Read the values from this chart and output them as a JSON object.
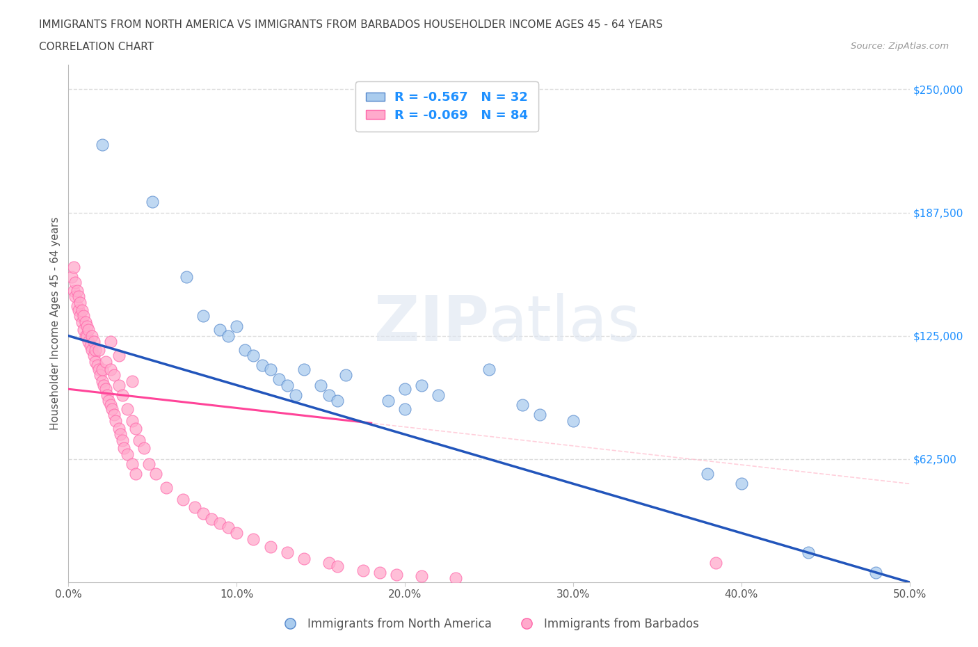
{
  "title_line1": "IMMIGRANTS FROM NORTH AMERICA VS IMMIGRANTS FROM BARBADOS HOUSEHOLDER INCOME AGES 45 - 64 YEARS",
  "title_line2": "CORRELATION CHART",
  "source": "Source: ZipAtlas.com",
  "ylabel": "Householder Income Ages 45 - 64 years",
  "watermark": "ZIPatlas",
  "legend_blue_R": "R = -0.567",
  "legend_blue_N": "N = 32",
  "legend_pink_R": "R = -0.069",
  "legend_pink_N": "N = 84",
  "legend_label_blue": "Immigrants from North America",
  "legend_label_pink": "Immigrants from Barbados",
  "blue_face_color": "#aaccee",
  "pink_face_color": "#ffaacc",
  "blue_edge_color": "#5588cc",
  "pink_edge_color": "#ff66aa",
  "blue_line_color": "#2255bb",
  "pink_line_color": "#ff4499",
  "blue_dash_color": "#aabbdd",
  "pink_dash_color": "#ffbbcc",
  "xmin": 0.0,
  "xmax": 0.5,
  "ymin": 0,
  "ymax": 262500,
  "yticks": [
    0,
    62500,
    125000,
    187500,
    250000
  ],
  "ytick_labels": [
    "",
    "$62,500",
    "$125,000",
    "$187,500",
    "$250,000"
  ],
  "xtick_labels": [
    "0.0%",
    "10.0%",
    "20.0%",
    "30.0%",
    "40.0%",
    "50.0%"
  ],
  "xticks": [
    0.0,
    0.1,
    0.2,
    0.3,
    0.4,
    0.5
  ],
  "blue_x": [
    0.02,
    0.05,
    0.07,
    0.08,
    0.09,
    0.095,
    0.1,
    0.105,
    0.11,
    0.115,
    0.12,
    0.125,
    0.13,
    0.135,
    0.14,
    0.15,
    0.155,
    0.16,
    0.165,
    0.19,
    0.2,
    0.2,
    0.21,
    0.22,
    0.25,
    0.27,
    0.28,
    0.3,
    0.38,
    0.4,
    0.44,
    0.48
  ],
  "blue_y": [
    222000,
    193000,
    155000,
    135000,
    128000,
    125000,
    130000,
    118000,
    115000,
    110000,
    108000,
    103000,
    100000,
    95000,
    108000,
    100000,
    95000,
    92000,
    105000,
    92000,
    98000,
    88000,
    100000,
    95000,
    108000,
    90000,
    85000,
    82000,
    55000,
    50000,
    15000,
    5000
  ],
  "pink_x": [
    0.002,
    0.003,
    0.003,
    0.004,
    0.004,
    0.005,
    0.005,
    0.006,
    0.006,
    0.007,
    0.007,
    0.008,
    0.008,
    0.009,
    0.009,
    0.01,
    0.01,
    0.011,
    0.011,
    0.012,
    0.012,
    0.013,
    0.014,
    0.014,
    0.015,
    0.015,
    0.016,
    0.016,
    0.017,
    0.018,
    0.019,
    0.02,
    0.02,
    0.021,
    0.022,
    0.023,
    0.024,
    0.025,
    0.026,
    0.027,
    0.028,
    0.03,
    0.031,
    0.032,
    0.033,
    0.035,
    0.038,
    0.04,
    0.018,
    0.022,
    0.025,
    0.027,
    0.03,
    0.032,
    0.035,
    0.038,
    0.04,
    0.042,
    0.045,
    0.048,
    0.052,
    0.058,
    0.068,
    0.075,
    0.08,
    0.085,
    0.09,
    0.095,
    0.1,
    0.11,
    0.12,
    0.13,
    0.14,
    0.155,
    0.16,
    0.175,
    0.185,
    0.195,
    0.21,
    0.23,
    0.025,
    0.03,
    0.038,
    0.385
  ],
  "pink_y": [
    155000,
    148000,
    160000,
    145000,
    152000,
    140000,
    148000,
    138000,
    145000,
    135000,
    142000,
    132000,
    138000,
    128000,
    135000,
    125000,
    132000,
    125000,
    130000,
    122000,
    128000,
    120000,
    118000,
    125000,
    115000,
    122000,
    112000,
    118000,
    110000,
    108000,
    105000,
    102000,
    108000,
    100000,
    98000,
    95000,
    92000,
    90000,
    88000,
    85000,
    82000,
    78000,
    75000,
    72000,
    68000,
    65000,
    60000,
    55000,
    118000,
    112000,
    108000,
    105000,
    100000,
    95000,
    88000,
    82000,
    78000,
    72000,
    68000,
    60000,
    55000,
    48000,
    42000,
    38000,
    35000,
    32000,
    30000,
    28000,
    25000,
    22000,
    18000,
    15000,
    12000,
    10000,
    8000,
    6000,
    5000,
    4000,
    3000,
    2000,
    122000,
    115000,
    102000,
    10000
  ],
  "background_color": "#ffffff",
  "grid_color": "#dddddd",
  "title_color": "#444444",
  "axis_label_color": "#555555",
  "tick_right_color": "#1E90FF"
}
